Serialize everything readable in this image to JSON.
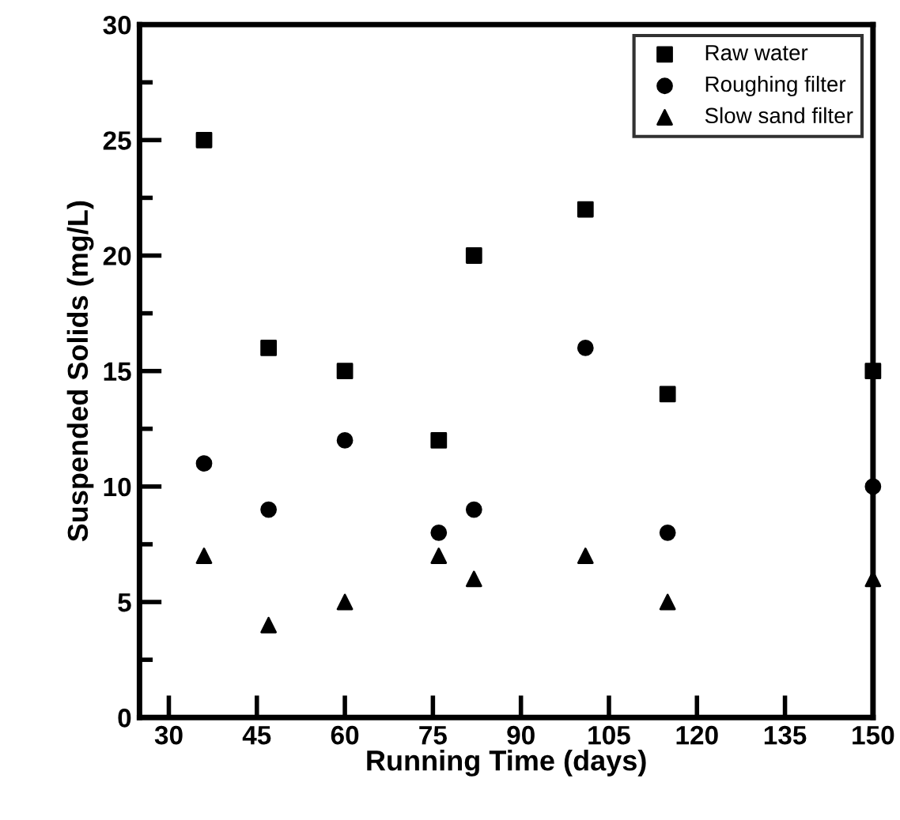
{
  "chart_data": {
    "type": "scatter",
    "xlabel": "Running Time (days)",
    "ylabel": "Suspended Solids (mg/L)",
    "x": [
      36,
      47,
      60,
      76,
      82,
      101,
      115,
      150
    ],
    "series": [
      {
        "name": "Raw water",
        "color": "#000000",
        "marker": "square",
        "values": [
          25,
          16,
          15,
          12,
          20,
          22,
          14,
          15
        ]
      },
      {
        "name": "Roughing filter",
        "color": "#000000",
        "marker": "circle",
        "values": [
          11,
          9,
          12,
          8,
          9,
          16,
          8,
          10
        ]
      },
      {
        "name": "Slow sand filter",
        "color": "#000000",
        "marker": "triangle",
        "values": [
          7,
          4,
          5,
          7,
          6,
          7,
          5,
          6
        ]
      }
    ],
    "xlim": [
      25,
      150
    ],
    "xticks": [
      30,
      45,
      60,
      75,
      90,
      105,
      120,
      135,
      150
    ],
    "ylim": [
      0,
      30
    ],
    "yticks": [
      0,
      5,
      10,
      15,
      20,
      25,
      30
    ],
    "grid": false,
    "legend": "top right"
  }
}
